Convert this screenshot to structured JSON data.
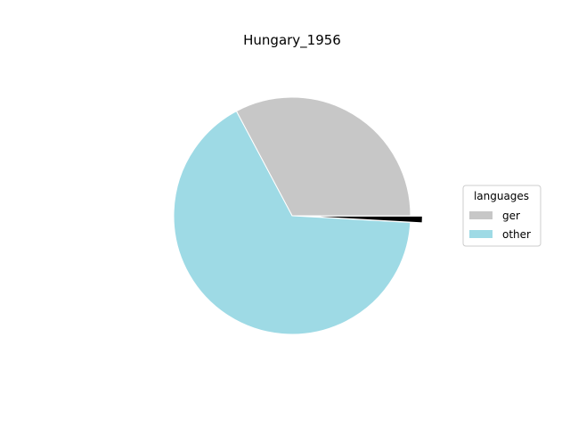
{
  "chart_data": {
    "type": "pie",
    "title": "Hungary_1956",
    "legend": {
      "title": "languages",
      "placement": "right"
    },
    "slices": [
      {
        "label": "ger",
        "value": 32.8,
        "color": "#c7c7c7"
      },
      {
        "label": "other",
        "value": 66.3,
        "color": "#9edae5"
      },
      {
        "label": "",
        "value": 0.9,
        "color": "#000000",
        "exploded": true
      }
    ],
    "start_angle_deg": 0,
    "direction": "counterclockwise"
  }
}
